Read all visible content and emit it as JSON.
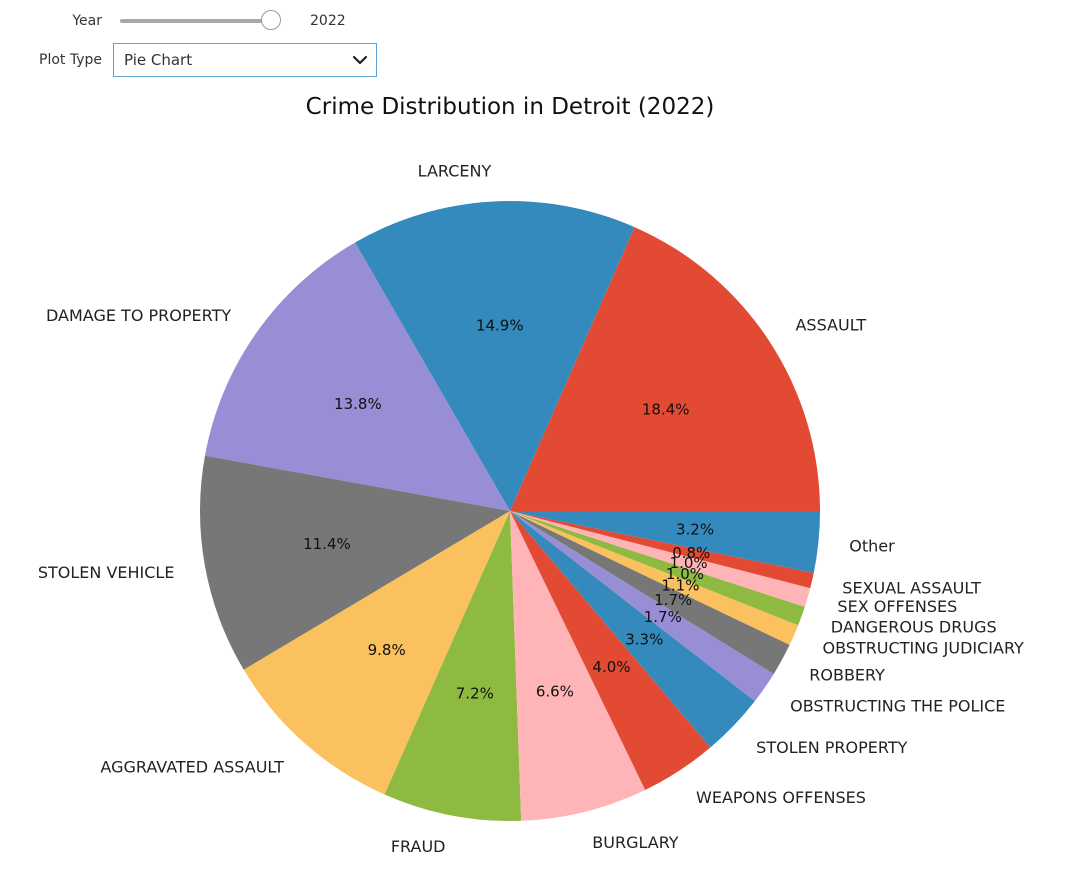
{
  "controls": {
    "year": {
      "label": "Year",
      "min": 2017,
      "max": 2022,
      "value": 2022,
      "readout": "2022"
    },
    "plot_type": {
      "label": "Plot Type",
      "value": "Pie Chart"
    }
  },
  "chart_data": {
    "type": "pie",
    "title": "Crime Distribution in Detroit (2022)",
    "start_angle_deg": 0,
    "direction": "counterclockwise",
    "categories": [
      "ASSAULT",
      "LARCENY",
      "DAMAGE TO PROPERTY",
      "STOLEN VEHICLE",
      "AGGRAVATED ASSAULT",
      "FRAUD",
      "BURGLARY",
      "WEAPONS OFFENSES",
      "STOLEN PROPERTY",
      "OBSTRUCTING THE POLICE",
      "ROBBERY",
      "OBSTRUCTING JUDICIARY",
      "DANGEROUS DRUGS",
      "SEX OFFENSES",
      "SEXUAL ASSAULT",
      "Other"
    ],
    "values": [
      18.4,
      14.9,
      13.8,
      11.4,
      9.8,
      7.2,
      6.6,
      4.0,
      3.3,
      1.7,
      1.7,
      1.1,
      1.0,
      1.0,
      0.8,
      3.2
    ],
    "value_labels": [
      "18.4%",
      "14.9%",
      "13.8%",
      "11.4%",
      "9.8%",
      "7.2%",
      "6.6%",
      "4.0%",
      "3.3%",
      "1.7%",
      "1.7%",
      "1.1%",
      "1.0%",
      "1.0%",
      "0.8%",
      "3.2%"
    ],
    "colors": [
      "#E24A33",
      "#348ABD",
      "#988ED5",
      "#777777",
      "#FBC15E",
      "#8EBA42",
      "#FFB5B8",
      "#E24A33",
      "#348ABD",
      "#988ED5",
      "#777777",
      "#FBC15E",
      "#8EBA42",
      "#FFB5B8",
      "#E24A33",
      "#348ABD"
    ]
  }
}
